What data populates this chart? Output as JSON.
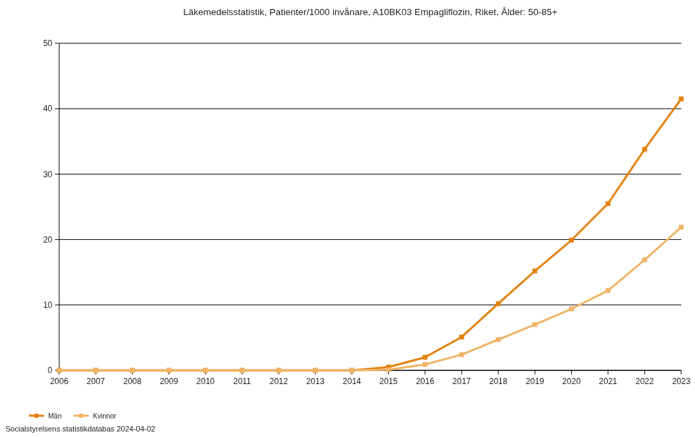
{
  "chart_data": {
    "type": "line",
    "title": "Läkemedelsstatistik, Patienter/1000 invånare, A10BK03 Empagliflozin, Riket, Ålder: 50-85+",
    "categories": [
      "2006",
      "2007",
      "2008",
      "2009",
      "2010",
      "2011",
      "2012",
      "2013",
      "2014",
      "2015",
      "2016",
      "2017",
      "2018",
      "2019",
      "2020",
      "2021",
      "2022",
      "2023"
    ],
    "series": [
      {
        "name": "Män",
        "color": "#e2820e",
        "values": [
          0,
          0,
          0,
          0,
          0,
          0,
          0,
          0,
          0,
          0.5,
          2.0,
          5.1,
          10.2,
          15.2,
          19.9,
          25.5,
          33.8,
          41.5
        ]
      },
      {
        "name": "Kvinnor",
        "color": "#f0b466",
        "values": [
          0,
          0,
          0,
          0,
          0,
          0,
          0,
          0,
          0,
          0.1,
          0.9,
          2.4,
          4.7,
          7.0,
          9.4,
          12.2,
          16.9,
          21.9
        ]
      }
    ],
    "ylim": [
      0,
      50
    ],
    "yticks": [
      0,
      10,
      20,
      30,
      40,
      50
    ],
    "grid": "y",
    "legend": "bottom left",
    "marker": "square",
    "line_style": "solid",
    "annotations": [
      "Socialstyrelsens statistikdatabas 2024-04-02"
    ]
  }
}
